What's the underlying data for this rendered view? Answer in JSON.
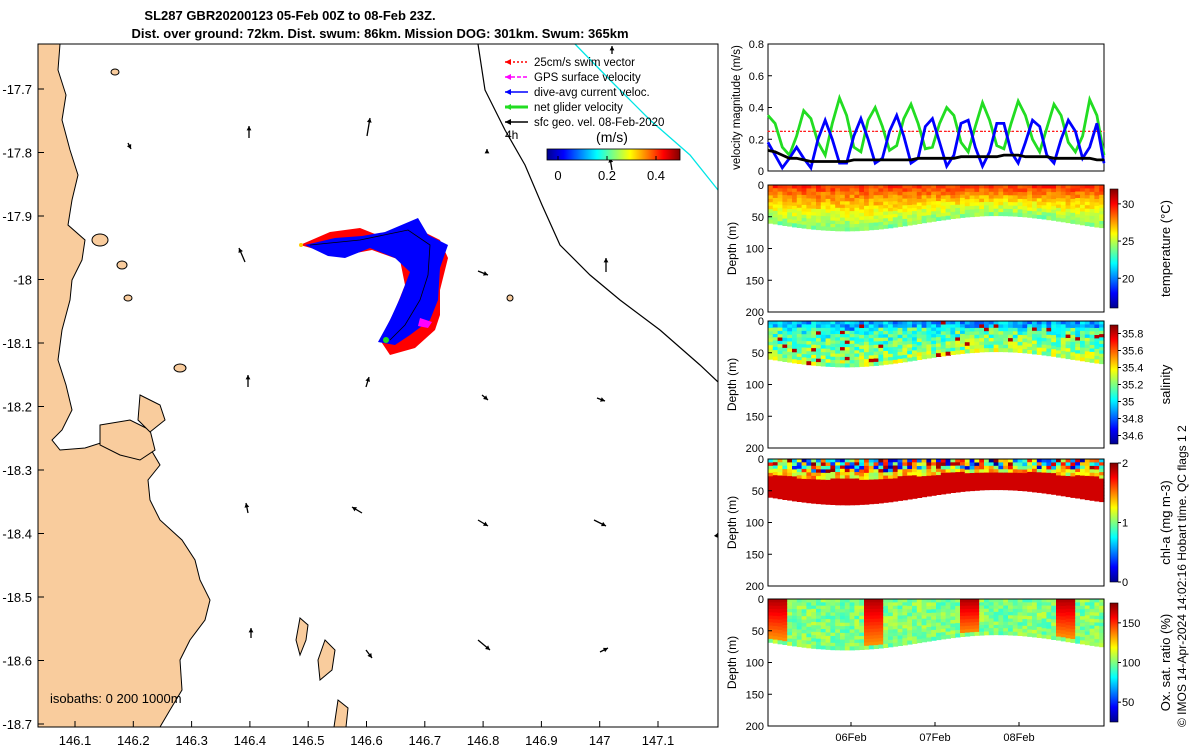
{
  "title": {
    "line1": "SL287 GBR20200123 05-Feb 00Z to 08-Feb 23Z.",
    "line2": "Dist. over ground: 72km. Dist. swum: 86km. Mission DOG: 301km. Swum: 365km"
  },
  "colors": {
    "land": "#f9cc9d",
    "swim": "#ff0000",
    "gps": "#ff00ff",
    "current": "#0000ff",
    "net": "#22dd22",
    "geo": "#000000",
    "cyan_track": "#00e5e5"
  },
  "map": {
    "x_ticks": [
      "146.1",
      "146.2",
      "146.3",
      "146.4",
      "146.5",
      "146.6",
      "146.7",
      "146.8",
      "146.9",
      "147",
      "147.1"
    ],
    "y_ticks": [
      "-17.7",
      "-17.8",
      "-17.9",
      "-18",
      "-18.1",
      "-18.2",
      "-18.3",
      "-18.4",
      "-18.5",
      "-18.6",
      "-18.7"
    ],
    "legend": [
      {
        "label": "25cm/s swim vector",
        "color": "#ff0000",
        "style": "dotted"
      },
      {
        "label": "GPS surface velocity",
        "color": "#ff00ff",
        "style": "dashed"
      },
      {
        "label": "dive-avg current veloc.",
        "color": "#0000ff",
        "style": "solid"
      },
      {
        "label": "net glider velocity",
        "color": "#22dd22",
        "style": "thick"
      },
      {
        "label": "sfc geo. vel. 08-Feb-2020",
        "color": "#000000",
        "style": "solid"
      }
    ],
    "colorbar_unit": "(m/s)",
    "colorbar_ticks": [
      "0",
      "0.2",
      "0.4"
    ],
    "label_4h": "4h",
    "isobaths": "isobaths: 0   200  1000m"
  },
  "chart_data": [
    {
      "type": "line",
      "ylabel": "velocity magnitude (m/s)",
      "ylim": [
        0,
        0.8
      ],
      "yticks": [
        "0",
        "0.2",
        "0.4",
        "0.6",
        "0.8"
      ],
      "x": [
        0,
        2,
        4,
        6,
        8,
        10,
        12,
        14,
        16,
        18,
        20,
        22,
        24,
        26,
        28,
        30,
        32,
        34,
        36,
        38,
        40,
        42,
        44,
        46,
        48,
        50,
        52,
        54,
        56,
        58,
        60,
        62,
        64,
        66,
        68,
        70,
        72,
        74,
        76,
        78,
        80,
        82,
        84,
        86,
        88,
        90,
        92,
        94
      ],
      "series": [
        {
          "values": [
            0.25,
            0.25,
            0.25,
            0.25,
            0.25,
            0.25,
            0.25,
            0.25,
            0.25,
            0.25,
            0.25,
            0.25,
            0.25,
            0.25,
            0.25,
            0.25,
            0.25,
            0.25,
            0.25,
            0.25,
            0.25,
            0.25,
            0.25,
            0.25,
            0.25,
            0.25,
            0.25,
            0.25,
            0.25,
            0.25,
            0.25,
            0.25,
            0.25,
            0.25,
            0.25,
            0.25,
            0.25,
            0.25,
            0.25,
            0.25,
            0.25,
            0.25,
            0.25,
            0.25,
            0.25,
            0.25,
            0.25,
            0.25
          ],
          "color": "#ff0000",
          "dash": true
        },
        {
          "values": [
            0.35,
            0.3,
            0.15,
            0.1,
            0.22,
            0.38,
            0.33,
            0.18,
            0.1,
            0.3,
            0.46,
            0.35,
            0.15,
            0.12,
            0.32,
            0.4,
            0.28,
            0.13,
            0.16,
            0.33,
            0.42,
            0.3,
            0.14,
            0.15,
            0.3,
            0.4,
            0.35,
            0.18,
            0.12,
            0.28,
            0.43,
            0.32,
            0.16,
            0.14,
            0.3,
            0.44,
            0.35,
            0.2,
            0.12,
            0.27,
            0.42,
            0.35,
            0.18,
            0.12,
            0.22,
            0.45,
            0.35,
            0.1
          ],
          "color": "#22dd22"
        },
        {
          "values": [
            0.18,
            0.1,
            0.02,
            0.08,
            0.15,
            0.08,
            0.02,
            0.2,
            0.32,
            0.2,
            0.05,
            0.05,
            0.22,
            0.33,
            0.2,
            0.05,
            0.08,
            0.25,
            0.35,
            0.22,
            0.05,
            0.08,
            0.28,
            0.33,
            0.18,
            0.03,
            0.1,
            0.3,
            0.32,
            0.15,
            0.03,
            0.12,
            0.3,
            0.3,
            0.12,
            0.05,
            0.18,
            0.32,
            0.28,
            0.1,
            0.05,
            0.2,
            0.32,
            0.25,
            0.08,
            0.15,
            0.3,
            0.05
          ],
          "color": "#0000ff"
        },
        {
          "values": [
            0.13,
            0.12,
            0.1,
            0.08,
            0.08,
            0.07,
            0.06,
            0.06,
            0.06,
            0.06,
            0.06,
            0.06,
            0.07,
            0.07,
            0.07,
            0.07,
            0.07,
            0.07,
            0.07,
            0.07,
            0.07,
            0.08,
            0.08,
            0.08,
            0.08,
            0.08,
            0.08,
            0.09,
            0.09,
            0.09,
            0.09,
            0.09,
            0.09,
            0.1,
            0.1,
            0.1,
            0.09,
            0.09,
            0.09,
            0.09,
            0.08,
            0.08,
            0.08,
            0.08,
            0.08,
            0.08,
            0.07,
            0.07
          ],
          "color": "#000000"
        }
      ]
    },
    {
      "type": "heatmap",
      "ylabel": "Depth (m)",
      "ylim": [
        0,
        200
      ],
      "yticks": [
        "0",
        "50",
        "100",
        "150",
        "200"
      ],
      "colorbar_label": "temperature (°C)",
      "colorbar_ticks": [
        "20",
        "25",
        "30"
      ],
      "colorbar_range": [
        16,
        32
      ]
    },
    {
      "type": "heatmap",
      "ylabel": "Depth (m)",
      "ylim": [
        0,
        200
      ],
      "yticks": [
        "0",
        "50",
        "100",
        "150",
        "200"
      ],
      "colorbar_label": "salinity",
      "colorbar_ticks": [
        "34.6",
        "34.8",
        "35",
        "35.2",
        "35.4",
        "35.6",
        "35.8"
      ],
      "colorbar_range": [
        34.5,
        35.9
      ]
    },
    {
      "type": "heatmap",
      "ylabel": "Depth (m)",
      "ylim": [
        0,
        200
      ],
      "yticks": [
        "0",
        "50",
        "100",
        "150",
        "200"
      ],
      "colorbar_label": "chl-a (mg m-3)",
      "colorbar_ticks": [
        "0",
        "1",
        "2"
      ],
      "colorbar_range": [
        0,
        2
      ]
    },
    {
      "type": "heatmap",
      "ylabel": "Depth (m)",
      "ylim": [
        0,
        200
      ],
      "yticks": [
        "0",
        "50",
        "100",
        "150",
        "200"
      ],
      "colorbar_label": "Ox. sat. ratio (%)",
      "colorbar_ticks": [
        "50",
        "100",
        "150"
      ],
      "colorbar_range": [
        25,
        175
      ],
      "x_ticks": [
        "06Feb",
        "07Feb",
        "08Feb"
      ]
    }
  ],
  "footer": "© IMOS 14-Apr-2024 14:02:16 Hobart time. QC flags 1  2"
}
